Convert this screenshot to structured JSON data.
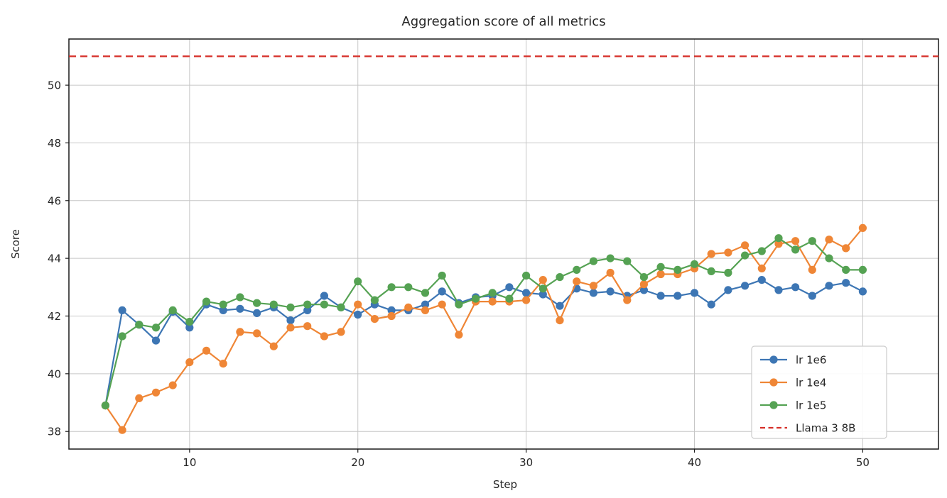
{
  "chart_data": {
    "type": "line",
    "title": "Aggregation score of all metrics",
    "xlabel": "Step",
    "ylabel": "Score",
    "x_ticks": [
      10,
      20,
      30,
      40,
      50
    ],
    "y_ticks": [
      38,
      40,
      42,
      44,
      46,
      48,
      50
    ],
    "xlim": [
      2.83,
      54.5
    ],
    "ylim": [
      37.39,
      51.6
    ],
    "grid": true,
    "legend_position": "lower right",
    "x": [
      5,
      6,
      7,
      8,
      9,
      10,
      11,
      12,
      13,
      14,
      15,
      16,
      17,
      18,
      19,
      20,
      21,
      22,
      23,
      24,
      25,
      26,
      27,
      28,
      29,
      30,
      31,
      32,
      33,
      34,
      35,
      36,
      37,
      38,
      39,
      40,
      41,
      42,
      43,
      44,
      45,
      46,
      47,
      48,
      49,
      50
    ],
    "series": [
      {
        "name": "lr 1e6",
        "color": "#3d76b4",
        "marker": "circle",
        "values": [
          38.9,
          42.2,
          41.7,
          41.15,
          42.15,
          41.6,
          42.4,
          42.2,
          42.25,
          42.1,
          42.3,
          41.85,
          42.2,
          42.7,
          42.3,
          42.05,
          42.4,
          42.2,
          42.2,
          42.4,
          42.85,
          42.45,
          42.65,
          42.7,
          43.0,
          42.8,
          42.75,
          42.35,
          42.95,
          42.8,
          42.85,
          42.7,
          42.9,
          42.7,
          42.7,
          42.8,
          42.4,
          42.9,
          43.05,
          43.25,
          42.9,
          43.0,
          42.7,
          43.05,
          43.15,
          42.85
        ]
      },
      {
        "name": "lr 1e4",
        "color": "#ef8636",
        "marker": "circle",
        "values": [
          38.9,
          38.05,
          39.15,
          39.35,
          39.6,
          40.4,
          40.8,
          40.35,
          41.45,
          41.4,
          40.95,
          41.6,
          41.65,
          41.3,
          41.45,
          42.4,
          41.9,
          42.0,
          42.3,
          42.2,
          42.4,
          41.35,
          42.5,
          42.5,
          42.5,
          42.55,
          43.25,
          41.85,
          43.2,
          43.05,
          43.5,
          42.55,
          43.1,
          43.45,
          43.45,
          43.65,
          44.15,
          44.2,
          44.45,
          43.65,
          44.5,
          44.6,
          43.6,
          44.65,
          44.35,
          45.05
        ]
      },
      {
        "name": "lr 1e5",
        "color": "#55a253",
        "marker": "circle",
        "values": [
          38.9,
          41.3,
          41.7,
          41.6,
          42.2,
          41.8,
          42.5,
          42.4,
          42.65,
          42.45,
          42.4,
          42.3,
          42.4,
          42.4,
          42.3,
          43.2,
          42.55,
          43.0,
          43.0,
          42.8,
          43.4,
          42.4,
          42.6,
          42.8,
          42.6,
          43.4,
          42.95,
          43.35,
          43.6,
          43.9,
          44.0,
          43.9,
          43.35,
          43.7,
          43.6,
          43.8,
          43.55,
          43.5,
          44.1,
          44.25,
          44.7,
          44.3,
          44.6,
          44.0,
          43.6,
          43.6
        ]
      }
    ],
    "reference_line": {
      "label": "Llama 3 8B",
      "value": 51.0,
      "color": "#d62f28",
      "style": "dashed"
    },
    "colors": {
      "grid": "#c6c6c6",
      "spine": "#1a1a1a",
      "legend_border": "#cccccc",
      "background": "#ffffff"
    }
  }
}
